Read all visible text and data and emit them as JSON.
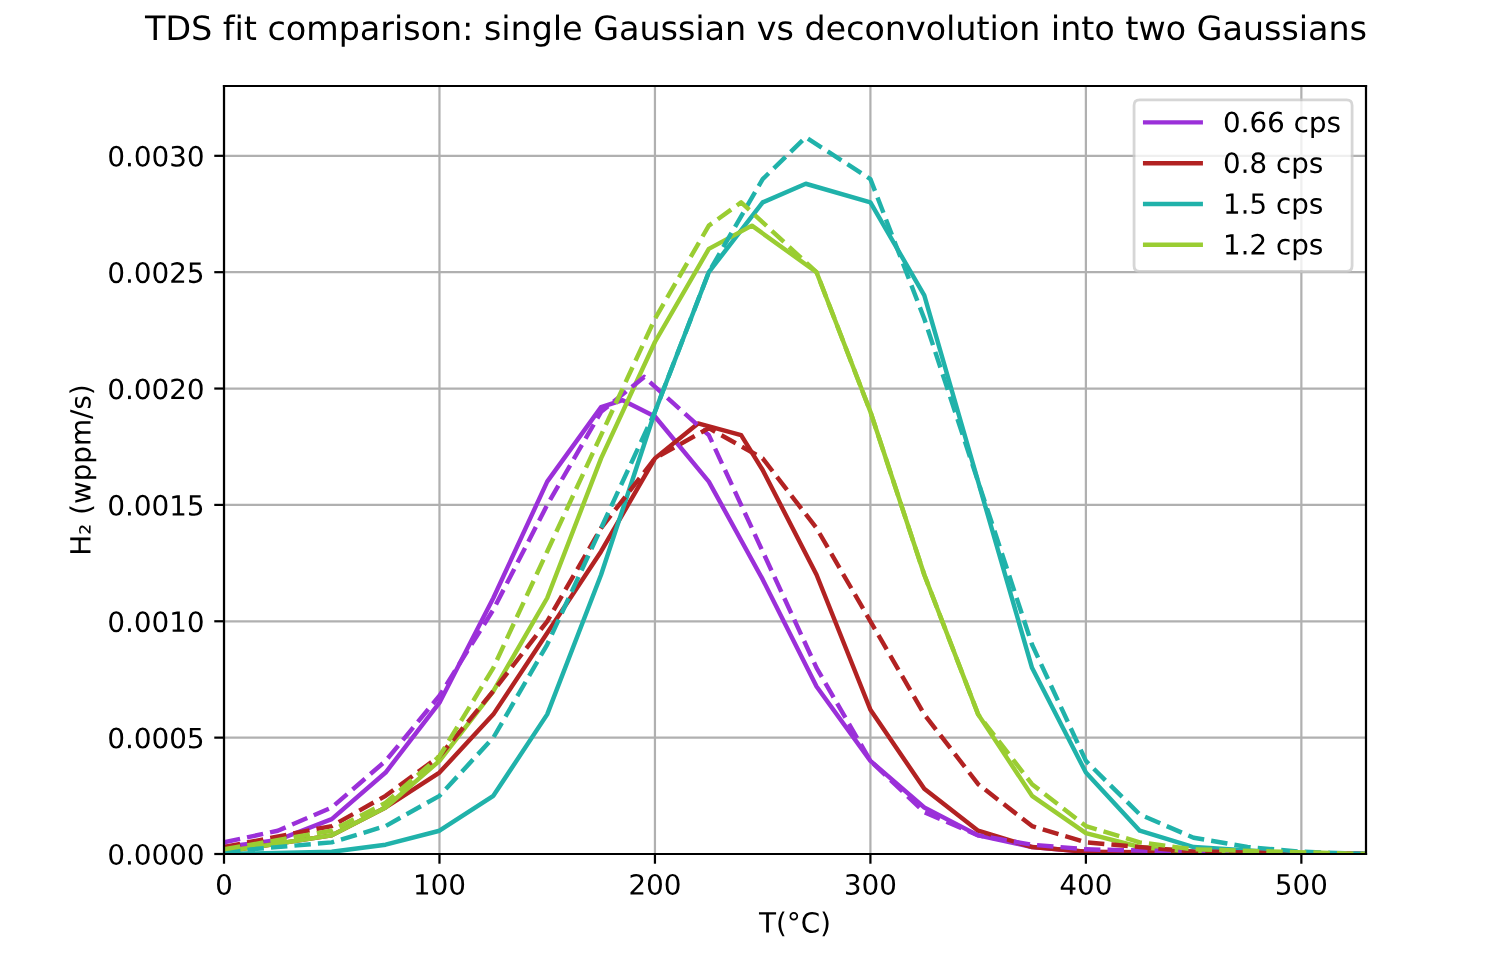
{
  "chart_data": {
    "type": "line",
    "title": "TDS fit comparison: single Gaussian vs deconvolution into two Gaussians",
    "xlabel": "T(°C)",
    "ylabel": "H₂ (wppm/s)",
    "xlim": [
      0,
      530
    ],
    "ylim": [
      0,
      0.0033
    ],
    "xticks": [
      0,
      100,
      200,
      300,
      400,
      500
    ],
    "yticks": [
      {
        "value": 0,
        "label": "0.0000"
      },
      {
        "value": 0.0005,
        "label": "0.0005"
      },
      {
        "value": 0.001,
        "label": "0.0010"
      },
      {
        "value": 0.0015,
        "label": "0.0015"
      },
      {
        "value": 0.002,
        "label": "0.0020"
      },
      {
        "value": 0.0025,
        "label": "0.0025"
      },
      {
        "value": 0.003,
        "label": "0.0030"
      }
    ],
    "grid": true,
    "legend": "top right",
    "series": [
      {
        "name": "0.66 cps",
        "color": "#9b30d9",
        "line_style": "solid",
        "x": [
          0,
          25,
          50,
          75,
          100,
          125,
          150,
          175,
          185,
          200,
          225,
          250,
          275,
          300,
          325,
          350,
          375,
          400,
          450,
          530
        ],
        "values": [
          3e-05,
          6e-05,
          0.00015,
          0.00035,
          0.00065,
          0.0011,
          0.0016,
          0.00192,
          0.00195,
          0.00188,
          0.0016,
          0.00118,
          0.00072,
          0.0004,
          0.0002,
          8e-05,
          3e-05,
          1e-05,
          0,
          0
        ]
      },
      {
        "name": "0.8 cps",
        "color": "#b22222",
        "line_style": "solid",
        "x": [
          0,
          50,
          75,
          100,
          125,
          150,
          175,
          200,
          220,
          240,
          250,
          275,
          300,
          325,
          350,
          375,
          400,
          530
        ],
        "values": [
          1e-05,
          8e-05,
          0.0002,
          0.00035,
          0.0006,
          0.00095,
          0.0013,
          0.0017,
          0.00185,
          0.0018,
          0.00165,
          0.0012,
          0.00062,
          0.00028,
          0.0001,
          3e-05,
          1e-05,
          0
        ]
      },
      {
        "name": "1.5 cps",
        "color": "#20b2aa",
        "line_style": "solid",
        "x": [
          0,
          50,
          75,
          100,
          125,
          150,
          175,
          200,
          225,
          250,
          270,
          300,
          325,
          350,
          375,
          400,
          425,
          450,
          500,
          530
        ],
        "values": [
          0,
          1e-05,
          4e-05,
          0.0001,
          0.00025,
          0.0006,
          0.0012,
          0.0019,
          0.0025,
          0.0028,
          0.00288,
          0.0028,
          0.0024,
          0.0016,
          0.0008,
          0.00035,
          0.0001,
          3e-05,
          0,
          0
        ]
      },
      {
        "name": "1.2 cps",
        "color": "#9acd32",
        "line_style": "solid",
        "x": [
          0,
          50,
          75,
          100,
          125,
          150,
          175,
          200,
          225,
          245,
          275,
          300,
          325,
          350,
          375,
          400,
          425,
          450,
          530
        ],
        "values": [
          1e-05,
          8e-05,
          0.0002,
          0.0004,
          0.0007,
          0.0011,
          0.0017,
          0.0022,
          0.0026,
          0.0027,
          0.0025,
          0.0019,
          0.0012,
          0.0006,
          0.00025,
          9e-05,
          3e-05,
          1e-05,
          0
        ]
      },
      {
        "color": "#9b30d9",
        "line_style": "dashed",
        "x": [
          0,
          25,
          50,
          75,
          100,
          125,
          150,
          175,
          195,
          225,
          250,
          275,
          300,
          325,
          350,
          375,
          400,
          450,
          530
        ],
        "values": [
          5e-05,
          0.0001,
          0.0002,
          0.0004,
          0.00068,
          0.00105,
          0.0015,
          0.0019,
          0.00205,
          0.0018,
          0.0013,
          0.0008,
          0.0004,
          0.00018,
          8e-05,
          4e-05,
          2e-05,
          1e-05,
          0
        ]
      },
      {
        "color": "#b22222",
        "line_style": "dashed",
        "x": [
          0,
          50,
          75,
          100,
          125,
          150,
          175,
          200,
          225,
          250,
          275,
          300,
          325,
          350,
          375,
          400,
          450,
          530
        ],
        "values": [
          3e-05,
          0.00012,
          0.00025,
          0.00042,
          0.0007,
          0.001,
          0.0014,
          0.0017,
          0.00183,
          0.0017,
          0.0014,
          0.001,
          0.0006,
          0.0003,
          0.00012,
          5e-05,
          1e-05,
          0
        ]
      },
      {
        "color": "#20b2aa",
        "line_style": "dashed",
        "x": [
          0,
          50,
          75,
          100,
          125,
          150,
          175,
          200,
          225,
          250,
          270,
          300,
          325,
          350,
          375,
          400,
          425,
          450,
          475,
          500,
          530
        ],
        "values": [
          1e-05,
          5e-05,
          0.00012,
          0.00025,
          0.0005,
          0.0009,
          0.0014,
          0.0019,
          0.0025,
          0.0029,
          0.00308,
          0.0029,
          0.0023,
          0.0016,
          0.0009,
          0.0004,
          0.00017,
          7e-05,
          3e-05,
          1e-05,
          0
        ]
      },
      {
        "color": "#9acd32",
        "line_style": "dashed",
        "x": [
          0,
          50,
          75,
          100,
          125,
          150,
          175,
          200,
          225,
          240,
          275,
          300,
          325,
          350,
          375,
          400,
          425,
          450,
          530
        ],
        "values": [
          2e-05,
          0.0001,
          0.00022,
          0.00042,
          0.0008,
          0.0013,
          0.0018,
          0.0023,
          0.0027,
          0.0028,
          0.0025,
          0.0019,
          0.0012,
          0.0006,
          0.0003,
          0.00012,
          5e-05,
          2e-05,
          0
        ]
      }
    ]
  }
}
